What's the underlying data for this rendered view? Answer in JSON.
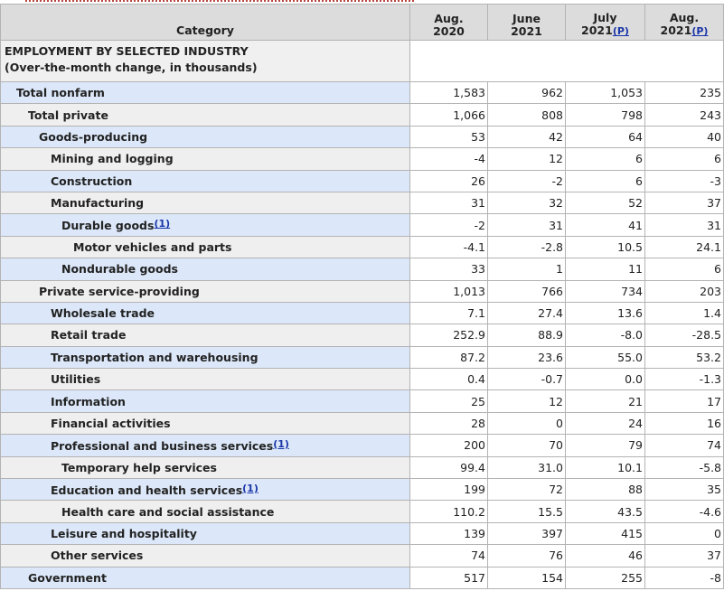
{
  "header": {
    "category": "Category",
    "columns": [
      {
        "line1": "Aug.",
        "line2": "2020",
        "p": ""
      },
      {
        "line1": "June",
        "line2": "2021",
        "p": ""
      },
      {
        "line1": "July",
        "line2": "2021",
        "p": "(P)"
      },
      {
        "line1": "Aug.",
        "line2": "2021",
        "p": "(P)"
      }
    ]
  },
  "section": {
    "line1": "EMPLOYMENT BY SELECTED INDUSTRY",
    "line2": "(Over-the-month change, in thousands)"
  },
  "rows": [
    {
      "label": "Total nonfarm",
      "fn": "",
      "level": 1,
      "shade": "hl",
      "values": [
        "1,583",
        "962",
        "1,053",
        "235"
      ]
    },
    {
      "label": "Total private",
      "fn": "",
      "level": 2,
      "shade": "gr",
      "values": [
        "1,066",
        "808",
        "798",
        "243"
      ]
    },
    {
      "label": "Goods-producing",
      "fn": "",
      "level": 3,
      "shade": "hl",
      "values": [
        "53",
        "42",
        "64",
        "40"
      ]
    },
    {
      "label": "Mining and logging",
      "fn": "",
      "level": 4,
      "shade": "gr",
      "values": [
        "-4",
        "12",
        "6",
        "6"
      ]
    },
    {
      "label": "Construction",
      "fn": "",
      "level": 4,
      "shade": "hl",
      "values": [
        "26",
        "-2",
        "6",
        "-3"
      ]
    },
    {
      "label": "Manufacturing",
      "fn": "",
      "level": 4,
      "shade": "gr",
      "values": [
        "31",
        "32",
        "52",
        "37"
      ]
    },
    {
      "label": "Durable goods",
      "fn": "(1)",
      "level": 5,
      "shade": "hl",
      "values": [
        "-2",
        "31",
        "41",
        "31"
      ]
    },
    {
      "label": "Motor vehicles and parts",
      "fn": "",
      "level": 6,
      "shade": "gr",
      "values": [
        "-4.1",
        "-2.8",
        "10.5",
        "24.1"
      ]
    },
    {
      "label": "Nondurable goods",
      "fn": "",
      "level": 5,
      "shade": "hl",
      "values": [
        "33",
        "1",
        "11",
        "6"
      ]
    },
    {
      "label": "Private service-providing",
      "fn": "",
      "level": 3,
      "shade": "gr",
      "values": [
        "1,013",
        "766",
        "734",
        "203"
      ]
    },
    {
      "label": "Wholesale trade",
      "fn": "",
      "level": 4,
      "shade": "hl",
      "values": [
        "7.1",
        "27.4",
        "13.6",
        "1.4"
      ]
    },
    {
      "label": "Retail trade",
      "fn": "",
      "level": 4,
      "shade": "gr",
      "values": [
        "252.9",
        "88.9",
        "-8.0",
        "-28.5"
      ]
    },
    {
      "label": "Transportation and warehousing",
      "fn": "",
      "level": 4,
      "shade": "hl",
      "values": [
        "87.2",
        "23.6",
        "55.0",
        "53.2"
      ]
    },
    {
      "label": "Utilities",
      "fn": "",
      "level": 4,
      "shade": "gr",
      "values": [
        "0.4",
        "-0.7",
        "0.0",
        "-1.3"
      ]
    },
    {
      "label": "Information",
      "fn": "",
      "level": 4,
      "shade": "hl",
      "values": [
        "25",
        "12",
        "21",
        "17"
      ]
    },
    {
      "label": "Financial activities",
      "fn": "",
      "level": 4,
      "shade": "gr",
      "values": [
        "28",
        "0",
        "24",
        "16"
      ]
    },
    {
      "label": "Professional and business services",
      "fn": "(1)",
      "level": 4,
      "shade": "hl",
      "values": [
        "200",
        "70",
        "79",
        "74"
      ]
    },
    {
      "label": "Temporary help services",
      "fn": "",
      "level": 5,
      "shade": "gr",
      "values": [
        "99.4",
        "31.0",
        "10.1",
        "-5.8"
      ]
    },
    {
      "label": "Education and health services",
      "fn": "(1)",
      "level": 4,
      "shade": "hl",
      "values": [
        "199",
        "72",
        "88",
        "35"
      ]
    },
    {
      "label": "Health care and social assistance",
      "fn": "",
      "level": 5,
      "shade": "gr",
      "values": [
        "110.2",
        "15.5",
        "43.5",
        "-4.6"
      ]
    },
    {
      "label": "Leisure and hospitality",
      "fn": "",
      "level": 4,
      "shade": "hl",
      "values": [
        "139",
        "397",
        "415",
        "0"
      ]
    },
    {
      "label": "Other services",
      "fn": "",
      "level": 4,
      "shade": "gr",
      "values": [
        "74",
        "76",
        "46",
        "37"
      ]
    },
    {
      "label": "Government",
      "fn": "",
      "level": 2,
      "shade": "hl",
      "values": [
        "517",
        "154",
        "255",
        "-8"
      ]
    }
  ]
}
